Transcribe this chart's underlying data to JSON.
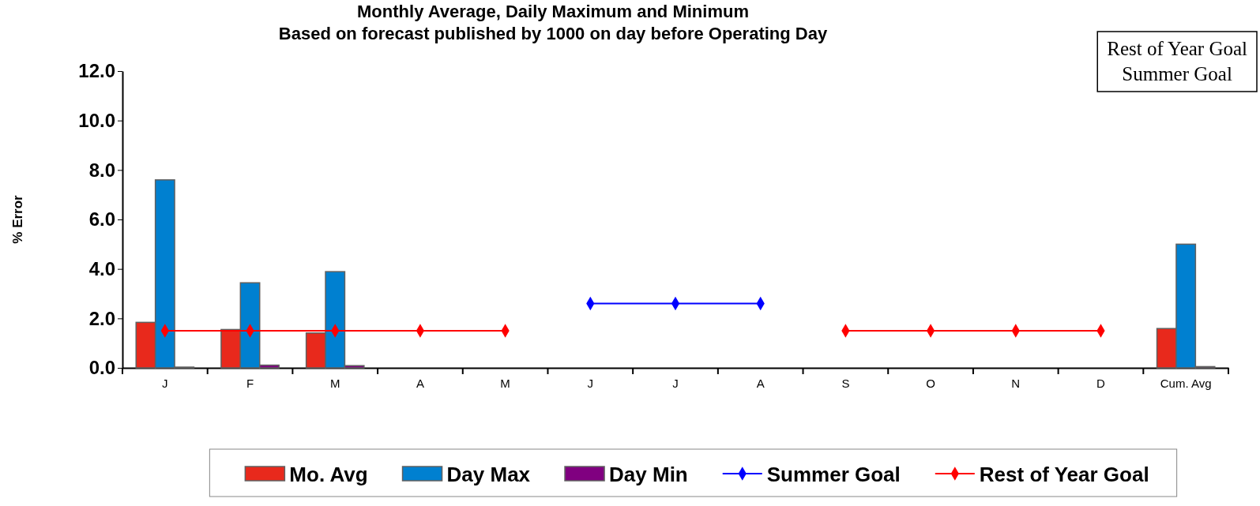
{
  "chart_data": {
    "type": "bar",
    "title": "Monthly Average, Daily Maximum and Minimum",
    "subtitle": "Based on forecast published by 1000 on day before Operating Day",
    "ylabel": "% Error",
    "categories": [
      "J",
      "F",
      "M",
      "A",
      "M",
      "J",
      "J",
      "A",
      "S",
      "O",
      "N",
      "D",
      "Cum. Avg"
    ],
    "series": [
      {
        "name": "Mo. Avg",
        "color": "#e8291c",
        "values": [
          1.84,
          1.55,
          1.41,
          null,
          null,
          null,
          null,
          null,
          null,
          null,
          null,
          null,
          1.59
        ]
      },
      {
        "name": "Day Max",
        "color": "#0080d0",
        "values": [
          7.6,
          3.44,
          3.89,
          null,
          null,
          null,
          null,
          null,
          null,
          null,
          null,
          null,
          5.0
        ]
      },
      {
        "name": "Day Min",
        "color": "#800080",
        "values": [
          0.03,
          0.11,
          0.09,
          null,
          null,
          null,
          null,
          null,
          null,
          null,
          null,
          null,
          0.05
        ]
      },
      {
        "name": "Summer Goal",
        "type": "line",
        "color": "#0000ff",
        "values": [
          null,
          null,
          null,
          null,
          null,
          2.6,
          2.6,
          2.6,
          null,
          null,
          null,
          null,
          null
        ]
      },
      {
        "name": "Rest of Year Goal",
        "type": "line",
        "color": "#ff0000",
        "values": [
          1.5,
          1.5,
          1.5,
          1.5,
          1.5,
          null,
          null,
          null,
          1.5,
          1.5,
          1.5,
          1.5,
          null
        ]
      }
    ],
    "ylim": [
      0,
      12
    ],
    "yticks": [
      {
        "value": 0,
        "label": "0.0"
      },
      {
        "value": 2,
        "label": "2.0"
      },
      {
        "value": 4,
        "label": "4.0"
      },
      {
        "value": 6,
        "label": "6.0"
      },
      {
        "value": 8,
        "label": "8.0"
      },
      {
        "value": 10,
        "label": "10.0"
      },
      {
        "value": 12,
        "label": "12.0"
      }
    ],
    "annotations": [
      "Rest of Year Goal",
      "Summer Goal"
    ],
    "marker": "diamond",
    "grid": false,
    "legend": "bottom"
  }
}
